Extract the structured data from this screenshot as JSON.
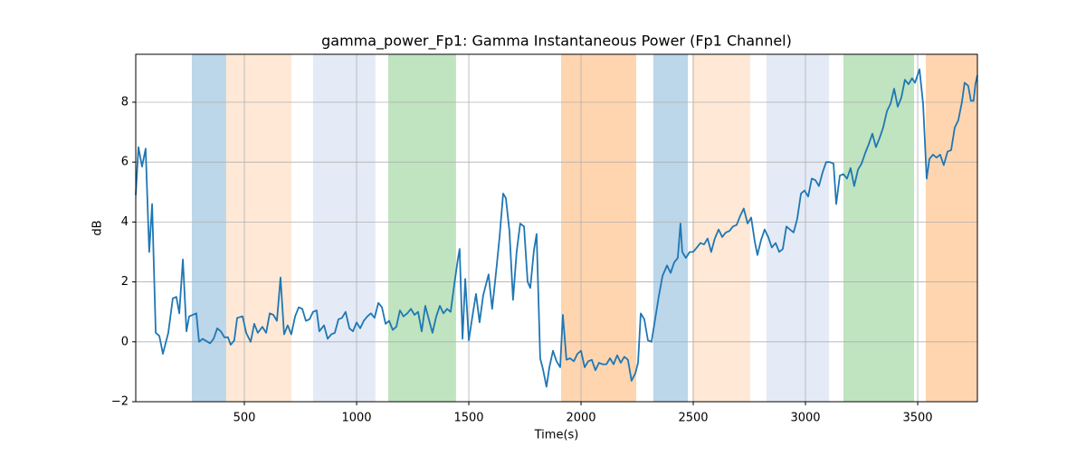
{
  "chart_data": {
    "type": "line",
    "title": "gamma_power_Fp1: Gamma Instantaneous Power (Fp1 Channel)",
    "xlabel": "Time(s)",
    "ylabel": "dB",
    "color": "#1f77b4",
    "grid": true,
    "xlim": [
      16,
      3766
    ],
    "ylim": [
      -2,
      9.6
    ],
    "xticks": [
      500,
      1000,
      1500,
      2000,
      2500,
      3000,
      3500
    ],
    "yticks": [
      {
        "value": -2,
        "label": "−2"
      },
      0,
      2,
      4,
      6,
      8
    ],
    "shaded_regions": [
      {
        "x0": 266,
        "x1": 419,
        "color": "#bcd6ea"
      },
      {
        "x0": 419,
        "x1": 710,
        "color": "#ffe9d6"
      },
      {
        "x0": 806,
        "x1": 1084,
        "color": "#e4ebf7"
      },
      {
        "x0": 1141,
        "x1": 1443,
        "color": "#c0e3c0"
      },
      {
        "x0": 1911,
        "x1": 2246,
        "color": "#ffd5b0"
      },
      {
        "x0": 2322,
        "x1": 2476,
        "color": "#bcd6ea"
      },
      {
        "x0": 2496,
        "x1": 2754,
        "color": "#ffe9d6"
      },
      {
        "x0": 2826,
        "x1": 3105,
        "color": "#e4ebf7"
      },
      {
        "x0": 3169,
        "x1": 3484,
        "color": "#c0e3c0"
      },
      {
        "x0": 3536,
        "x1": 3766,
        "color": "#ffd5b0"
      }
    ],
    "x": [
      16,
      28,
      44,
      60,
      76,
      89,
      105,
      121,
      137,
      161,
      181,
      197,
      210,
      226,
      242,
      254,
      286,
      298,
      314,
      347,
      363,
      379,
      395,
      411,
      427,
      439,
      455,
      468,
      492,
      508,
      528,
      544,
      560,
      580,
      597,
      613,
      629,
      645,
      661,
      677,
      693,
      709,
      726,
      742,
      758,
      774,
      790,
      806,
      822,
      834,
      855,
      871,
      887,
      903,
      919,
      935,
      951,
      968,
      984,
      1000,
      1016,
      1032,
      1048,
      1064,
      1080,
      1097,
      1113,
      1129,
      1145,
      1161,
      1177,
      1193,
      1209,
      1226,
      1242,
      1258,
      1274,
      1290,
      1306,
      1322,
      1338,
      1355,
      1371,
      1387,
      1403,
      1419,
      1435,
      1451,
      1459,
      1472,
      1484,
      1500,
      1516,
      1532,
      1548,
      1564,
      1588,
      1604,
      1621,
      1637,
      1653,
      1665,
      1681,
      1697,
      1713,
      1729,
      1746,
      1762,
      1774,
      1790,
      1802,
      1818,
      1830,
      1846,
      1859,
      1875,
      1891,
      1907,
      1919,
      1935,
      1951,
      1968,
      1984,
      2000,
      2016,
      2032,
      2048,
      2064,
      2080,
      2096,
      2113,
      2129,
      2145,
      2161,
      2177,
      2193,
      2209,
      2225,
      2242,
      2254,
      2266,
      2282,
      2298,
      2314,
      2330,
      2346,
      2363,
      2383,
      2399,
      2415,
      2431,
      2443,
      2451,
      2467,
      2484,
      2500,
      2516,
      2532,
      2548,
      2564,
      2580,
      2596,
      2613,
      2629,
      2645,
      2661,
      2677,
      2693,
      2709,
      2725,
      2742,
      2758,
      2774,
      2786,
      2802,
      2818,
      2834,
      2850,
      2867,
      2883,
      2899,
      2915,
      2931,
      2947,
      2963,
      2980,
      2996,
      3012,
      3028,
      3044,
      3060,
      3076,
      3092,
      3108,
      3125,
      3137,
      3153,
      3169,
      3185,
      3201,
      3217,
      3234,
      3250,
      3266,
      3282,
      3298,
      3314,
      3330,
      3346,
      3363,
      3379,
      3395,
      3411,
      3427,
      3443,
      3459,
      3475,
      3488,
      3508,
      3524,
      3540,
      3552,
      3568,
      3584,
      3600,
      3616,
      3633,
      3649,
      3665,
      3681,
      3697,
      3709,
      3725,
      3737,
      3749,
      3757,
      3766
    ],
    "values": [
      4.9,
      6.5,
      5.85,
      6.45,
      3.0,
      4.6,
      0.3,
      0.2,
      -0.4,
      0.3,
      1.45,
      1.5,
      0.95,
      2.75,
      0.35,
      0.85,
      0.95,
      0.0,
      0.1,
      -0.05,
      0.1,
      0.45,
      0.35,
      0.15,
      0.15,
      -0.1,
      0.05,
      0.8,
      0.85,
      0.3,
      0.0,
      0.6,
      0.3,
      0.5,
      0.3,
      0.95,
      0.9,
      0.7,
      2.15,
      0.25,
      0.55,
      0.25,
      0.85,
      1.15,
      1.1,
      0.7,
      0.75,
      1.0,
      1.05,
      0.35,
      0.55,
      0.1,
      0.25,
      0.3,
      0.75,
      0.8,
      1.0,
      0.45,
      0.35,
      0.65,
      0.45,
      0.7,
      0.85,
      0.95,
      0.8,
      1.3,
      1.15,
      0.6,
      0.7,
      0.4,
      0.5,
      1.05,
      0.85,
      0.95,
      1.1,
      0.9,
      1.0,
      0.35,
      1.2,
      0.75,
      0.3,
      0.85,
      1.2,
      0.95,
      1.1,
      1.0,
      1.9,
      2.75,
      3.1,
      0.1,
      2.1,
      0.05,
      0.85,
      1.6,
      0.65,
      1.55,
      2.25,
      1.1,
      2.3,
      3.5,
      4.95,
      4.8,
      3.7,
      1.4,
      3.0,
      3.95,
      3.85,
      2.0,
      1.8,
      3.05,
      3.6,
      -0.55,
      -0.9,
      -1.5,
      -0.85,
      -0.3,
      -0.65,
      -0.85,
      0.9,
      -0.6,
      -0.55,
      -0.65,
      -0.4,
      -0.3,
      -0.85,
      -0.65,
      -0.6,
      -0.95,
      -0.7,
      -0.75,
      -0.75,
      -0.55,
      -0.75,
      -0.45,
      -0.7,
      -0.5,
      -0.6,
      -1.3,
      -1.05,
      -0.7,
      0.95,
      0.75,
      0.05,
      0.0,
      0.75,
      1.5,
      2.2,
      2.55,
      2.3,
      2.65,
      2.8,
      3.95,
      3.0,
      2.8,
      3.0,
      3.0,
      3.15,
      3.3,
      3.25,
      3.45,
      3.0,
      3.45,
      3.75,
      3.5,
      3.65,
      3.7,
      3.85,
      3.9,
      4.2,
      4.45,
      3.95,
      4.15,
      3.35,
      2.9,
      3.4,
      3.75,
      3.5,
      3.15,
      3.3,
      3.0,
      3.1,
      3.85,
      3.75,
      3.65,
      4.1,
      4.95,
      5.05,
      4.85,
      5.45,
      5.4,
      5.2,
      5.65,
      6.0,
      6.0,
      5.95,
      4.6,
      5.55,
      5.6,
      5.45,
      5.8,
      5.2,
      5.75,
      5.95,
      6.3,
      6.6,
      6.95,
      6.5,
      6.8,
      7.15,
      7.7,
      7.95,
      8.45,
      7.85,
      8.15,
      8.75,
      8.6,
      8.8,
      8.65,
      9.1,
      7.95,
      5.45,
      6.1,
      6.25,
      6.15,
      6.25,
      5.9,
      6.35,
      6.4,
      7.15,
      7.4,
      8.0,
      8.65,
      8.55,
      8.05,
      8.05,
      8.6,
      8.9
    ]
  }
}
